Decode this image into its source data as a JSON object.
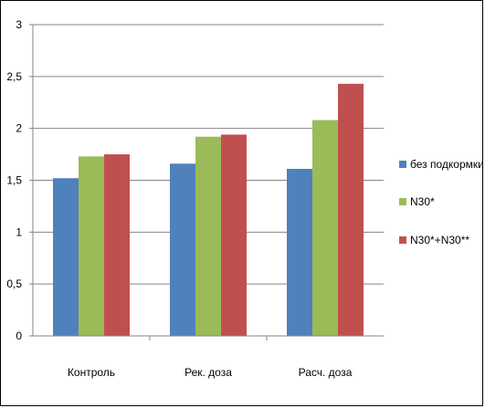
{
  "chart_data": {
    "type": "bar",
    "categories": [
      "Контроль",
      "Рек. доза",
      "Расч. доза"
    ],
    "series": [
      {
        "name": "без подкормки",
        "values": [
          1.52,
          1.66,
          1.61
        ],
        "color": "#4F81BD"
      },
      {
        "name": "N30*",
        "values": [
          1.73,
          1.92,
          2.08
        ],
        "color": "#9BBB59"
      },
      {
        "name": "N30*+N30**",
        "values": [
          1.75,
          1.94,
          2.43
        ],
        "color": "#C0504D"
      }
    ],
    "y_ticks": [
      "0",
      "0,5",
      "1",
      "1,5",
      "2",
      "2,5",
      "3"
    ],
    "ylim": [
      0,
      3
    ],
    "grid": true,
    "legend_position": "right",
    "title": "",
    "xlabel": "",
    "ylabel": ""
  }
}
